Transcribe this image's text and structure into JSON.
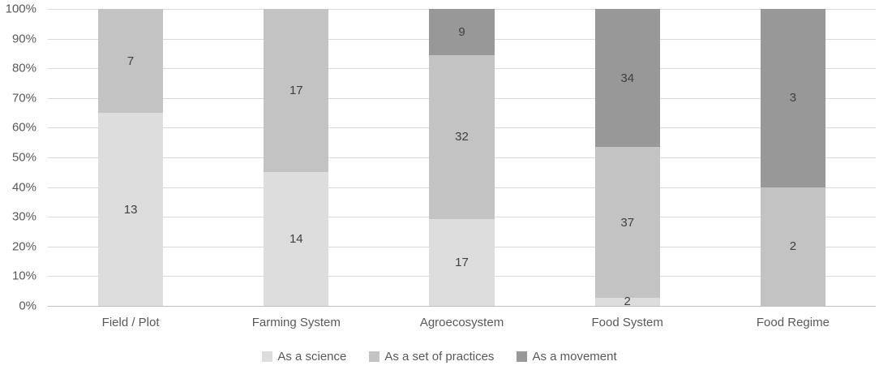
{
  "chart_data": {
    "type": "bar",
    "subtype": "stacked-100-percent",
    "title": "",
    "xlabel": "",
    "ylabel": "",
    "categories": [
      "Field / Plot",
      "Farming System",
      "Agroecosystem",
      "Food System",
      "Food Regime"
    ],
    "series": [
      {
        "name": "As a science",
        "color": "#dddddd",
        "values": [
          13,
          14,
          17,
          2,
          0
        ]
      },
      {
        "name": "As a set of practices",
        "color": "#c3c3c3",
        "values": [
          7,
          17,
          32,
          37,
          2
        ]
      },
      {
        "name": "As a movement",
        "color": "#989898",
        "values": [
          0,
          0,
          9,
          34,
          3
        ]
      }
    ],
    "y_axis": {
      "min": 0,
      "max": 100,
      "tick_step": 10,
      "tick_labels": [
        "0%",
        "10%",
        "20%",
        "30%",
        "40%",
        "50%",
        "60%",
        "70%",
        "80%",
        "90%",
        "100%"
      ],
      "grid": true
    },
    "legend_position": "bottom"
  },
  "colors": {
    "background": "#ffffff",
    "gridline": "#d9d9d9",
    "baseline": "#bfbfbf",
    "axis_text": "#595959",
    "value_label_text": "#404040"
  }
}
